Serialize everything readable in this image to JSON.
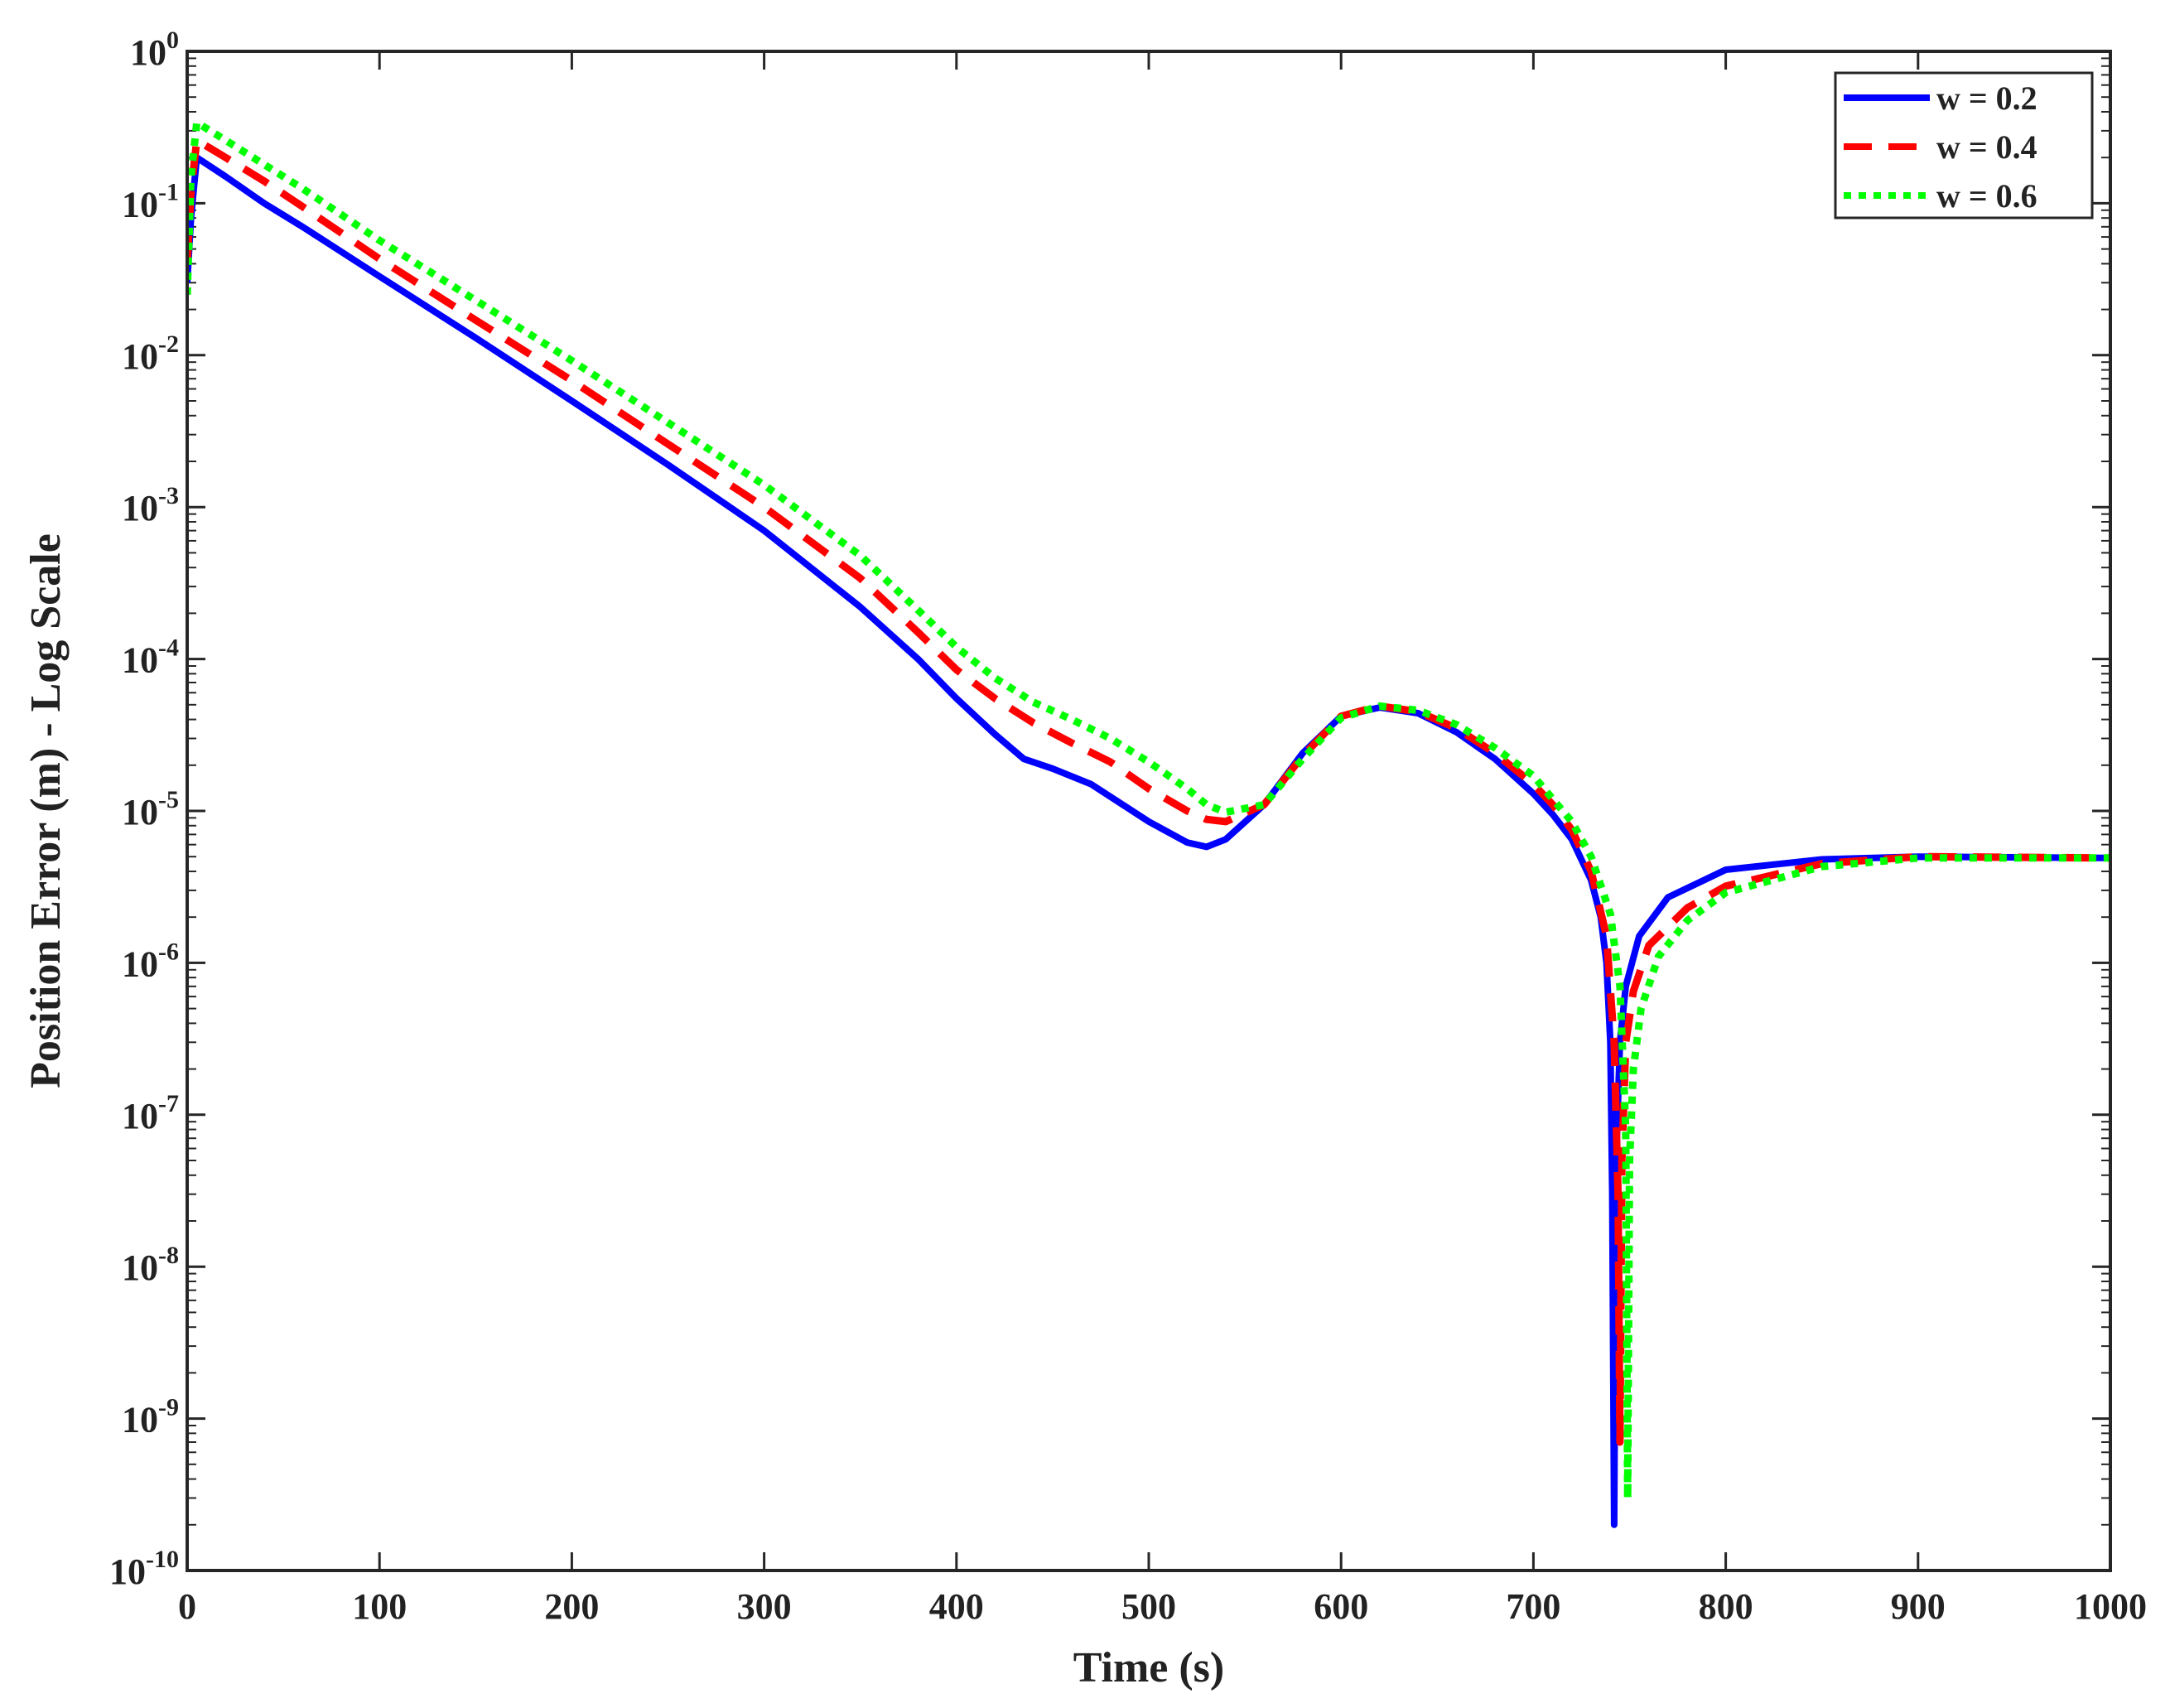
{
  "chart_data": {
    "type": "line",
    "title": "",
    "xlabel": "Time (s)",
    "ylabel": "Position Error (m) - Log Scale",
    "xlim": [
      0,
      1000
    ],
    "ylim": [
      1e-10,
      1
    ],
    "yscale": "log",
    "grid": false,
    "legend_position": "top-right",
    "x_ticks": [
      "0",
      "100",
      "200",
      "300",
      "400",
      "500",
      "600",
      "700",
      "800",
      "900",
      "1000"
    ],
    "y_ticks": [
      {
        "base": "10",
        "exp": "-10"
      },
      {
        "base": "10",
        "exp": "-9"
      },
      {
        "base": "10",
        "exp": "-8"
      },
      {
        "base": "10",
        "exp": "-7"
      },
      {
        "base": "10",
        "exp": "-6"
      },
      {
        "base": "10",
        "exp": "-5"
      },
      {
        "base": "10",
        "exp": "-4"
      },
      {
        "base": "10",
        "exp": "-3"
      },
      {
        "base": "10",
        "exp": "-2"
      },
      {
        "base": "10",
        "exp": "-1"
      },
      {
        "base": "10",
        "exp": "0"
      }
    ],
    "series": [
      {
        "name": "w = 0.2",
        "color": "#0000ff",
        "dash": "solid",
        "x": [
          0,
          2,
          5,
          20,
          40,
          60,
          100,
          150,
          200,
          250,
          300,
          350,
          380,
          400,
          420,
          435,
          450,
          470,
          500,
          520,
          530,
          540,
          560,
          580,
          600,
          620,
          640,
          660,
          680,
          700,
          710,
          720,
          730,
          735,
          738,
          740,
          741,
          742,
          743,
          745,
          748,
          755,
          770,
          800,
          850,
          900,
          1000
        ],
        "y": [
          0.03,
          0.08,
          0.2,
          0.15,
          0.1,
          0.07,
          0.033,
          0.013,
          0.005,
          0.0019,
          0.0007,
          0.00022,
          0.0001,
          5.5e-05,
          3.2e-05,
          2.2e-05,
          1.9e-05,
          1.5e-05,
          8.5e-06,
          6.2e-06,
          5.8e-06,
          6.5e-06,
          1.1e-05,
          2.4e-05,
          4.2e-05,
          4.8e-05,
          4.4e-05,
          3.3e-05,
          2.2e-05,
          1.3e-05,
          9.5e-06,
          6.5e-06,
          3.5e-06,
          2e-06,
          1e-06,
          3e-07,
          3e-08,
          2e-10,
          5e-08,
          3e-07,
          7e-07,
          1.5e-06,
          2.7e-06,
          4.1e-06,
          4.8e-06,
          5e-06,
          4.9e-06
        ]
      },
      {
        "name": "w = 0.4",
        "color": "#ff0000",
        "dash": "dashed",
        "x": [
          0,
          2,
          5,
          20,
          40,
          60,
          100,
          150,
          200,
          250,
          300,
          350,
          380,
          400,
          420,
          440,
          460,
          480,
          500,
          520,
          530,
          540,
          560,
          580,
          600,
          620,
          640,
          660,
          680,
          700,
          710,
          720,
          730,
          738,
          742,
          744,
          745,
          746,
          748,
          752,
          760,
          780,
          800,
          850,
          900,
          1000
        ],
        "y": [
          0.04,
          0.12,
          0.26,
          0.2,
          0.14,
          0.095,
          0.043,
          0.017,
          0.0068,
          0.0026,
          0.001,
          0.00034,
          0.00015,
          8.5e-05,
          5.5e-05,
          3.8e-05,
          2.8e-05,
          2.1e-05,
          1.4e-05,
          1e-05,
          8.8e-06,
          8.5e-06,
          1.1e-05,
          2.3e-05,
          4.2e-05,
          4.9e-05,
          4.5e-05,
          3.5e-05,
          2.4e-05,
          1.5e-05,
          1.1e-05,
          7.5e-06,
          4e-06,
          1.5e-06,
          3e-07,
          3e-08,
          7e-10,
          5e-08,
          3e-07,
          6.5e-07,
          1.3e-06,
          2.3e-06,
          3.2e-06,
          4.5e-06,
          5e-06,
          4.9e-06
        ]
      },
      {
        "name": "w = 0.6",
        "color": "#00ff00",
        "dash": "dotted",
        "x": [
          0,
          2,
          5,
          20,
          40,
          60,
          100,
          150,
          200,
          250,
          300,
          350,
          380,
          400,
          420,
          440,
          460,
          480,
          500,
          520,
          530,
          540,
          560,
          580,
          600,
          620,
          640,
          660,
          680,
          700,
          710,
          720,
          730,
          740,
          745,
          748,
          749,
          750,
          752,
          756,
          765,
          780,
          800,
          850,
          900,
          1000
        ],
        "y": [
          0.025,
          0.15,
          0.34,
          0.26,
          0.18,
          0.125,
          0.057,
          0.023,
          0.0092,
          0.0036,
          0.0014,
          0.00048,
          0.00021,
          0.00012,
          7.5e-05,
          5.2e-05,
          4e-05,
          3e-05,
          2.1e-05,
          1.4e-05,
          1.1e-05,
          9.8e-06,
          1.1e-05,
          2.2e-05,
          4.1e-05,
          4.9e-05,
          4.6e-05,
          3.7e-05,
          2.6e-05,
          1.7e-05,
          1.2e-05,
          8.5e-06,
          5e-06,
          2.1e-06,
          7e-07,
          8e-08,
          3e-10,
          5e-08,
          2e-07,
          5e-07,
          1.1e-06,
          1.9e-06,
          2.9e-06,
          4.3e-06,
          4.9e-06,
          4.9e-06
        ]
      }
    ]
  }
}
